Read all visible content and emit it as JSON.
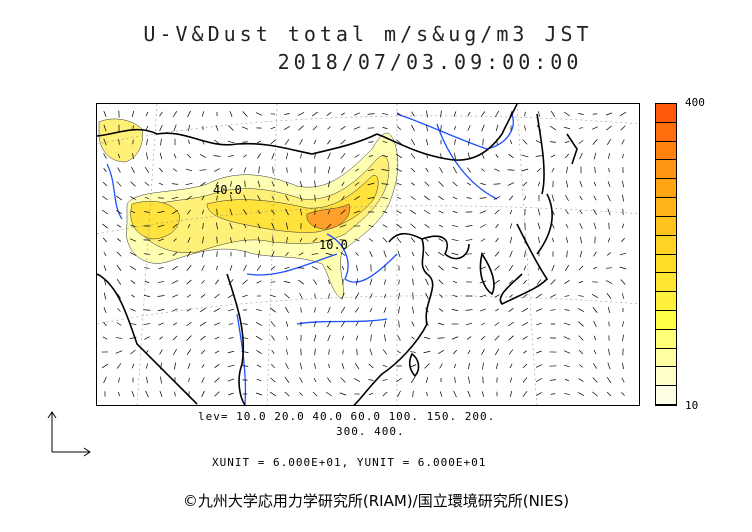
{
  "header": {
    "title": "U-V&Dust total m/s&ug/m3 JST",
    "datetime": "2018/07/03.09:00:00"
  },
  "colorbar": {
    "max_label": "400",
    "min_label": "10",
    "colors": [
      "#ff5a0a",
      "#ff6e0a",
      "#ff820f",
      "#ff9614",
      "#ffa514",
      "#ffb419",
      "#ffc31e",
      "#ffd223",
      "#ffdc28",
      "#ffe632",
      "#fff03c",
      "#ffff46",
      "#ffff78",
      "#ffffa0",
      "#ffffc8",
      "#ffffe6"
    ]
  },
  "map": {
    "contour_labels": [
      "40.0",
      "10.0"
    ],
    "colors": {
      "coast": "#000000",
      "river": "#1e50ff",
      "grid": "#888888",
      "dust_light": "#ffffb4",
      "dust_mid": "#fff03c",
      "dust_high": "#ffd223",
      "dust_peak": "#ff9614"
    }
  },
  "legend": {
    "levels_line1": "lev= 10.0 20.0 40.0 60.0 100. 150. 200.",
    "levels_line2": "300. 400.",
    "units_line": "XUNIT = 6.000E+01, YUNIT = 6.000E+01"
  },
  "footer": {
    "copyright": "©九州大学応用力学研究所(RIAM)/国立環境研究所(NIES)"
  }
}
